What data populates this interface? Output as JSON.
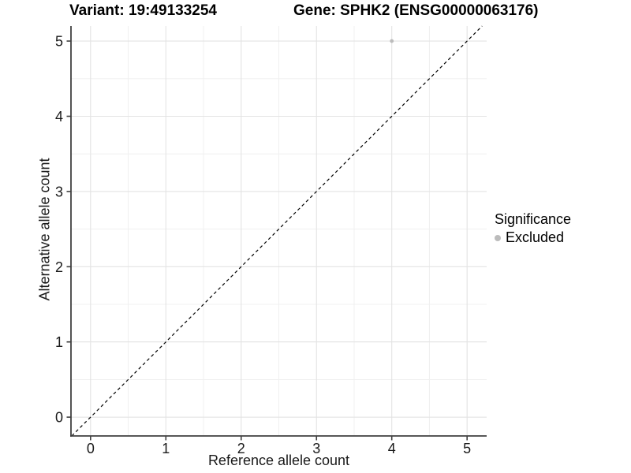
{
  "titles": {
    "left": "Variant: 19:49133254",
    "right": "Gene: SPHK2 (ENSG00000063176)"
  },
  "axes": {
    "x_label": "Reference allele count",
    "y_label": "Alternative allele count"
  },
  "legend": {
    "title": "Significance",
    "items": [
      {
        "label": "Excluded",
        "color": "#bcbcbc"
      }
    ]
  },
  "chart_data": {
    "type": "scatter",
    "title_left": "Variant: 19:49133254",
    "title_right": "Gene: SPHK2 (ENSG00000063176)",
    "xlabel": "Reference allele count",
    "ylabel": "Alternative allele count",
    "xlim": [
      -0.26,
      5.26
    ],
    "ylim": [
      -0.25,
      5.2
    ],
    "x_ticks": [
      0,
      1,
      2,
      3,
      4,
      5
    ],
    "y_ticks": [
      0,
      1,
      2,
      3,
      4,
      5
    ],
    "grid": "major and minor gridlines on",
    "legend_position": "right",
    "series": [
      {
        "name": "Excluded",
        "color": "#bcbcbc",
        "points": [
          {
            "x": 4,
            "y": 5
          }
        ]
      }
    ],
    "reference_line": {
      "type": "identity y=x",
      "style": "dashed",
      "color": "#000000"
    }
  },
  "colors": {
    "background": "#ffffff",
    "axis_line": "#404040",
    "tick_text": "#1a1a1a",
    "major_grid": "#e3e3e3",
    "minor_grid": "#f0f0f0",
    "point": "#bcbcbc"
  }
}
